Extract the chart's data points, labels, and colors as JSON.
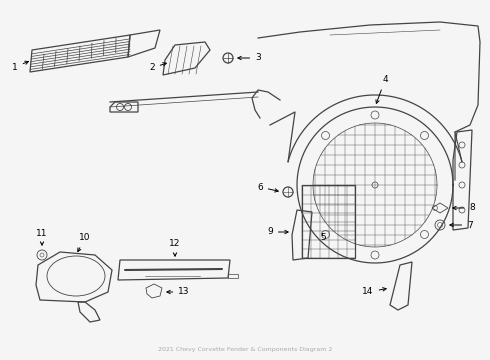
{
  "title": "2021 Chevy Corvette Fender & Components Diagram 2",
  "bg_color": "#f5f5f5",
  "line_color": "#444444",
  "label_color": "#000000",
  "fig_w": 4.9,
  "fig_h": 3.6,
  "dpi": 100
}
